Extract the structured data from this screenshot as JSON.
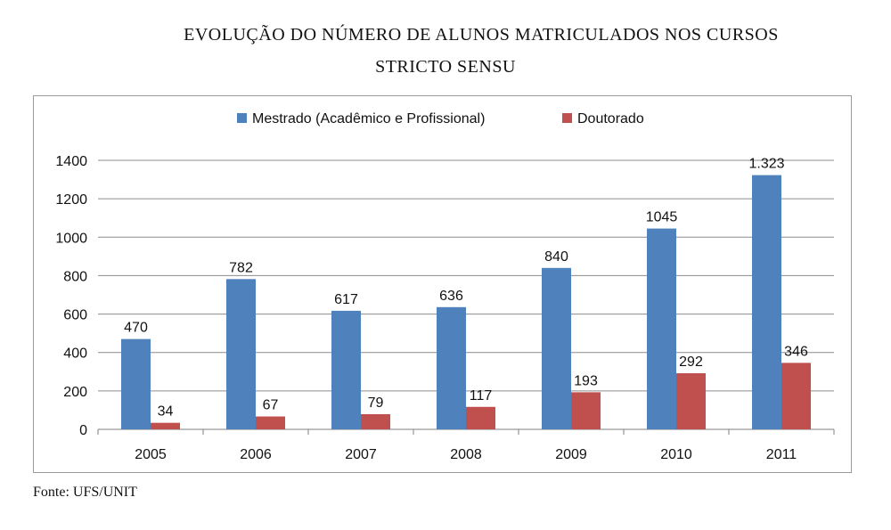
{
  "title_lines": [
    "EVOLUÇÃO DO NÚMERO DE ALUNOS MATRICULADOS NOS CURSOS",
    "STRICTO SENSU"
  ],
  "source": "Fonte: UFS/UNIT",
  "chart_data": {
    "type": "bar",
    "title": "EVOLUÇÃO DO NÚMERO DE ALUNOS MATRICULADOS NOS CURSOS STRICTO SENSU",
    "categories": [
      "2005",
      "2006",
      "2007",
      "2008",
      "2009",
      "2010",
      "2011"
    ],
    "series": [
      {
        "name": "Mestrado (Acadêmico e Profissional)",
        "color": "#4f81bd",
        "values": [
          470,
          782,
          617,
          636,
          840,
          1045,
          1323
        ],
        "labels": [
          "470",
          "782",
          "617",
          "636",
          "840",
          "1045",
          "1.323"
        ]
      },
      {
        "name": "Doutorado",
        "color": "#c0504d",
        "values": [
          34,
          67,
          79,
          117,
          193,
          292,
          346
        ],
        "labels": [
          "34",
          "67",
          "79",
          "117",
          "193",
          "292",
          "346"
        ]
      }
    ],
    "ylim": [
      0,
      1400
    ],
    "yticks": [
      "0",
      "200",
      "400",
      "600",
      "800",
      "1000",
      "1200",
      "1400"
    ],
    "grid": true,
    "legend_position": "top-center",
    "xlabel": "",
    "ylabel": ""
  }
}
